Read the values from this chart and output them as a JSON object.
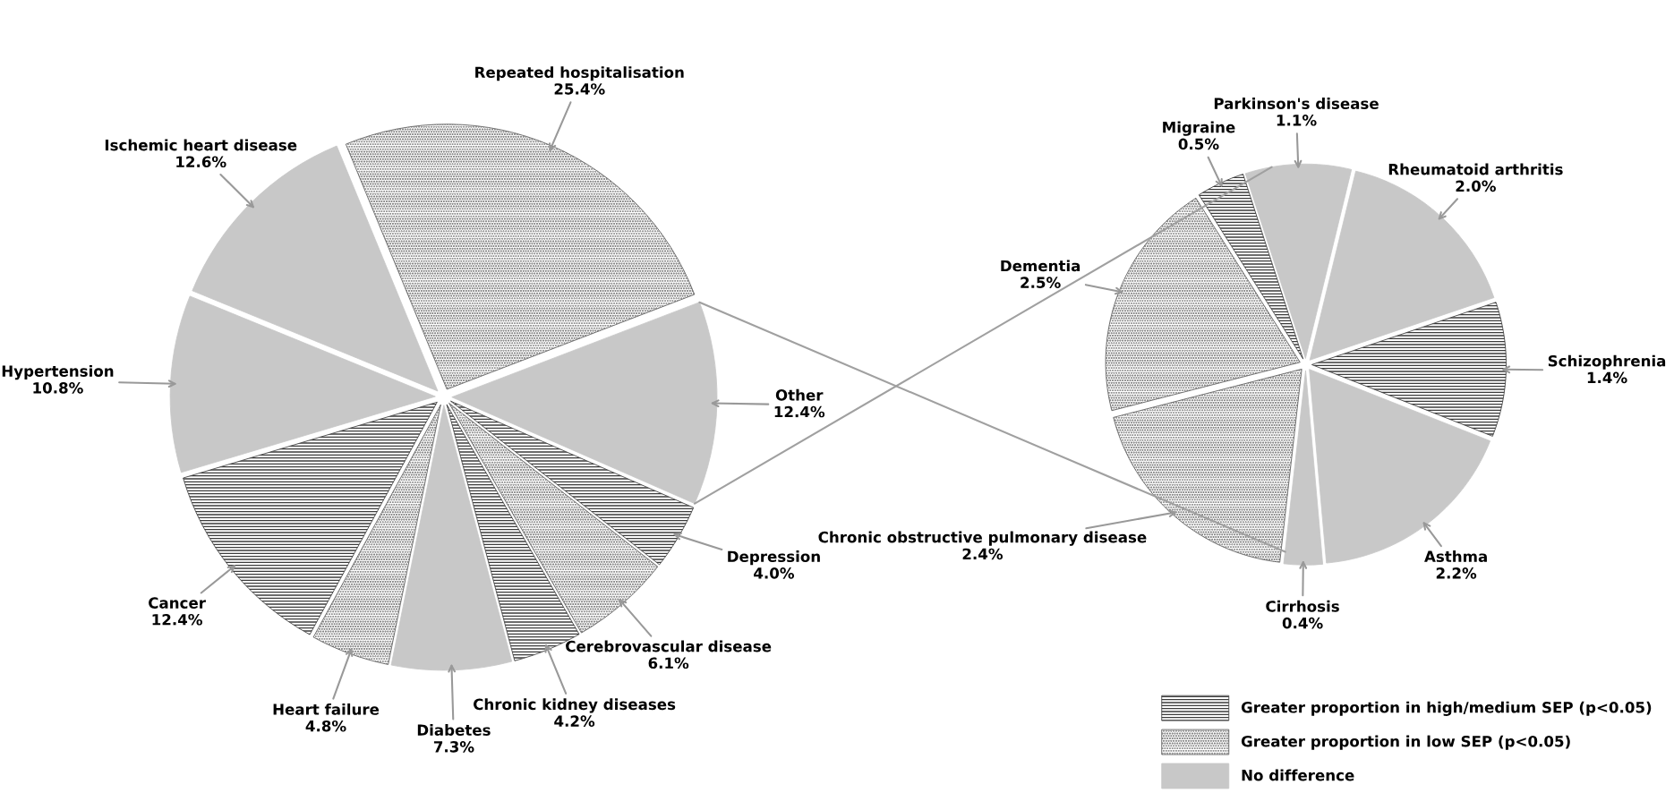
{
  "chart_data": [
    {
      "type": "pie",
      "categories": [
        "Parkinson's disease",
        "Rheumatoid arthritis",
        "Schizophrenia",
        "Asthma",
        "Cirrhosis",
        "Chronic obstructive pulmonary disease",
        "Dementia",
        "Migraine"
      ],
      "values": [
        1.1,
        2.0,
        1.4,
        2.2,
        0.4,
        2.4,
        2.5,
        0.5
      ],
      "value_labels": [
        "1.1%",
        "2.0%",
        "1.4%",
        "2.2%",
        "0.4%",
        "2.4%",
        "2.5%",
        "0.5%"
      ],
      "colors": [
        "#c8c8c8",
        "#c8c8c8",
        "#3c3c3c",
        "#c8c8c8",
        "#c8c8c8",
        "#5a5a5a",
        "#5a5a5a",
        "#3c3c3c"
      ]
    },
    {
      "type": "pie",
      "categories": [
        "Repeated hospitalisation",
        "Other",
        "Depression",
        "Cerebrovascular disease",
        "Chronic kidney diseases",
        "Diabetes",
        "Heart failure",
        "Cancer",
        "Hypertension",
        "Ischemic heart disease"
      ],
      "values": [
        25.4,
        12.4,
        4.0,
        6.1,
        4.2,
        7.3,
        4.8,
        12.4,
        10.8,
        12.6
      ],
      "value_labels": [
        "25.4%",
        "12.4%",
        "4.0%",
        "6.1%",
        "4.2%",
        "7.3%",
        "4.8%",
        "12.4%",
        "10.8%",
        "12.6%"
      ],
      "colors": [
        "#5a5a5a",
        "#c8c8c8",
        "#3c3c3c",
        "#5a5a5a",
        "#3c3c3c",
        "#c8c8c8",
        "#5a5a5a",
        "#3c3c3c",
        "#c8c8c8",
        "#c8c8c8"
      ]
    },
    {
      "type": "other",
      "categories": [
        "Greater proportion in high/medium SEP (p<0.05)",
        "Greater proportion in low SEP (p<0.05)",
        "No difference"
      ],
      "colors": [
        "#3c3c3c",
        "#5a5a5a",
        "#c8c8c8"
      ]
    }
  ]
}
